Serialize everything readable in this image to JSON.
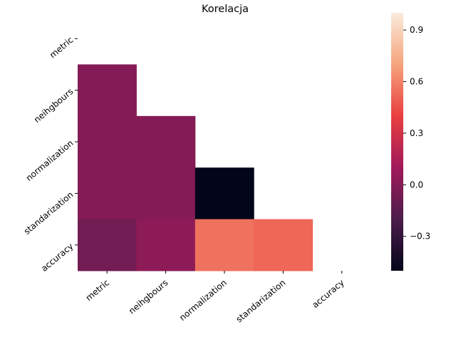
{
  "chart_data": {
    "type": "heatmap",
    "title": "Korelacja",
    "xlabel": "",
    "ylabel": "",
    "rows": [
      "metric",
      "neihgbours",
      "normalization",
      "standarization",
      "accuracy"
    ],
    "cols": [
      "metric",
      "neihgbours",
      "normalization",
      "standarization",
      "accuracy"
    ],
    "mask": "upper-triangle-including-diagonal",
    "values": [
      [
        null,
        null,
        null,
        null,
        null
      ],
      [
        0.0,
        null,
        null,
        null,
        null
      ],
      [
        0.0,
        0.0,
        null,
        null,
        null
      ],
      [
        0.0,
        0.0,
        -0.5,
        null,
        null
      ],
      [
        -0.07,
        0.03,
        0.55,
        0.52,
        null
      ]
    ],
    "colorbar": {
      "range": [
        -0.5,
        1.0
      ],
      "ticks": [
        -0.3,
        0.0,
        0.3,
        0.6,
        0.9
      ],
      "tick_labels": [
        "−0.3",
        "0.0",
        "0.3",
        "0.6",
        "0.9"
      ],
      "colormap": "rocket"
    },
    "grid": false,
    "legend": "colorbar-right"
  }
}
